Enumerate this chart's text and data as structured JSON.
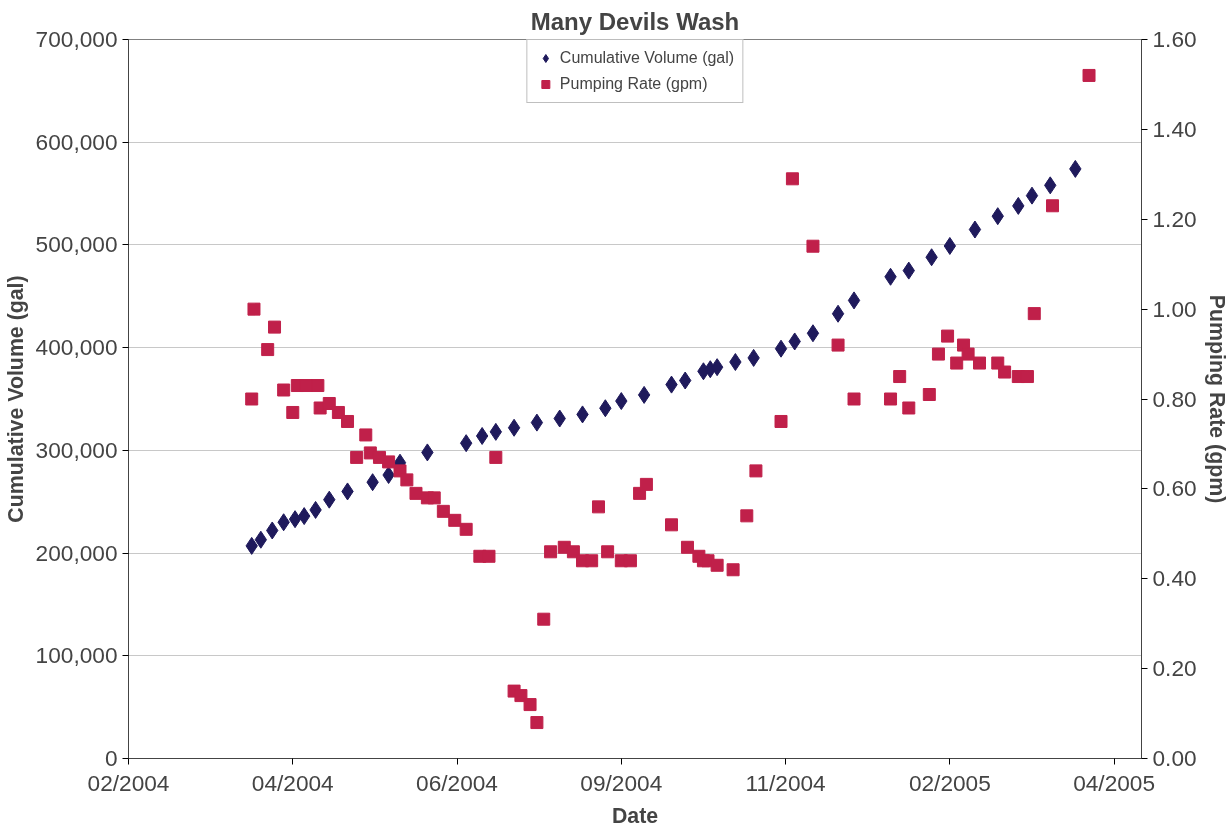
{
  "chart_data": {
    "type": "scatter",
    "title": "Many Devils Wash",
    "xlabel": "Date",
    "ylabel": "Cumulative Volume (gal)",
    "y2label": "Pumping Rate (gpm)",
    "xlim": [
      "2004-02-07",
      "2005-04-26"
    ],
    "xticks": [
      {
        "value": "2004-02-07",
        "label": "02/2004"
      },
      {
        "value": "2004-04-19",
        "label": "04/2004"
      },
      {
        "value": "2004-06-30",
        "label": "06/2004"
      },
      {
        "value": "2004-09-10",
        "label": "09/2004"
      },
      {
        "value": "2004-11-21",
        "label": "11/2004"
      },
      {
        "value": "2005-02-01",
        "label": "02/2005"
      },
      {
        "value": "2005-04-14",
        "label": "04/2005"
      }
    ],
    "ylim": [
      0,
      700000
    ],
    "yticks": [
      {
        "value": 0,
        "label": "0"
      },
      {
        "value": 100000,
        "label": "100,000"
      },
      {
        "value": 200000,
        "label": "200,000"
      },
      {
        "value": 300000,
        "label": "300,000"
      },
      {
        "value": 400000,
        "label": "400,000"
      },
      {
        "value": 500000,
        "label": "500,000"
      },
      {
        "value": 600000,
        "label": "600,000"
      },
      {
        "value": 700000,
        "label": "700,000"
      }
    ],
    "y2lim": [
      0,
      1.6
    ],
    "y2ticks": [
      {
        "value": 0,
        "label": "0.00"
      },
      {
        "value": 0.2,
        "label": "0.20"
      },
      {
        "value": 0.4,
        "label": "0.40"
      },
      {
        "value": 0.6,
        "label": "0.60"
      },
      {
        "value": 0.8,
        "label": "0.80"
      },
      {
        "value": 1.0,
        "label": "1.00"
      },
      {
        "value": 1.2,
        "label": "1.20"
      },
      {
        "value": 1.4,
        "label": "1.40"
      },
      {
        "value": 1.6,
        "label": "1.60"
      }
    ],
    "grid": "y",
    "legend": "top",
    "series": [
      {
        "name": "Cumulative Volume (gal)",
        "color": "#1f1a5c",
        "marker": "diamond",
        "x": [
          "2004-04-01",
          "2004-04-05",
          "2004-04-10",
          "2004-04-15",
          "2004-04-20",
          "2004-04-24",
          "2004-04-29",
          "2004-05-05",
          "2004-05-13",
          "2004-05-24",
          "2004-05-31",
          "2004-06-05",
          "2004-06-17",
          "2004-07-04",
          "2004-07-11",
          "2004-07-17",
          "2004-07-25",
          "2004-08-04",
          "2004-08-14",
          "2004-08-24",
          "2004-09-03",
          "2004-09-10",
          "2004-09-20",
          "2004-10-02",
          "2004-10-08",
          "2004-10-16",
          "2004-10-19",
          "2004-10-22",
          "2004-10-30",
          "2004-11-07",
          "2004-11-19",
          "2004-11-25",
          "2004-12-03",
          "2004-12-14",
          "2004-12-21",
          "2005-01-06",
          "2005-01-14",
          "2005-01-24",
          "2005-02-01",
          "2005-02-12",
          "2005-02-22",
          "2005-03-03",
          "2005-03-09",
          "2005-03-17",
          "2005-03-28"
        ],
        "values": [
          207000,
          213000,
          222000,
          230000,
          233000,
          236000,
          242000,
          252000,
          260000,
          269000,
          276000,
          288000,
          298000,
          307000,
          314000,
          318000,
          322000,
          327000,
          331000,
          335000,
          341000,
          348000,
          354000,
          364000,
          368000,
          377000,
          379000,
          381000,
          386000,
          390000,
          399000,
          406000,
          414000,
          433000,
          446000,
          469000,
          475000,
          488000,
          499000,
          515000,
          528000,
          538000,
          548000,
          558000,
          574000
        ]
      },
      {
        "name": "Pumping Rate (gpm)",
        "color": "#c0204a",
        "marker": "square",
        "axis": "y2",
        "x": [
          "2004-04-01",
          "2004-04-02",
          "2004-04-08",
          "2004-04-11",
          "2004-04-15",
          "2004-04-19",
          "2004-04-21",
          "2004-04-25",
          "2004-04-30",
          "2004-05-01",
          "2004-05-05",
          "2004-05-09",
          "2004-05-13",
          "2004-05-17",
          "2004-05-21",
          "2004-05-23",
          "2004-05-27",
          "2004-05-31",
          "2004-06-05",
          "2004-06-08",
          "2004-06-12",
          "2004-06-17",
          "2004-06-20",
          "2004-06-24",
          "2004-06-29",
          "2004-07-04",
          "2004-07-10",
          "2004-07-14",
          "2004-07-17",
          "2004-07-25",
          "2004-07-28",
          "2004-08-01",
          "2004-08-04",
          "2004-08-07",
          "2004-08-10",
          "2004-08-16",
          "2004-08-20",
          "2004-08-24",
          "2004-08-28",
          "2004-08-31",
          "2004-09-04",
          "2004-09-10",
          "2004-09-14",
          "2004-09-18",
          "2004-09-21",
          "2004-10-02",
          "2004-10-09",
          "2004-10-14",
          "2004-10-16",
          "2004-10-18",
          "2004-10-22",
          "2004-10-29",
          "2004-11-04",
          "2004-11-08",
          "2004-11-19",
          "2004-11-24",
          "2004-12-03",
          "2004-12-14",
          "2004-12-21",
          "2005-01-06",
          "2005-01-10",
          "2005-01-14",
          "2005-01-23",
          "2005-01-27",
          "2005-01-31",
          "2005-02-04",
          "2005-02-07",
          "2005-02-09",
          "2005-02-14",
          "2005-02-22",
          "2005-02-25",
          "2005-03-03",
          "2005-03-07",
          "2005-03-10",
          "2005-03-18",
          "2005-04-03"
        ],
        "values": [
          0.8,
          1.0,
          0.91,
          0.96,
          0.82,
          0.77,
          0.83,
          0.83,
          0.83,
          0.78,
          0.79,
          0.77,
          0.75,
          0.67,
          0.72,
          0.68,
          0.67,
          0.66,
          0.64,
          0.62,
          0.59,
          0.58,
          0.58,
          0.55,
          0.53,
          0.51,
          0.45,
          0.45,
          0.67,
          0.15,
          0.14,
          0.12,
          0.08,
          0.31,
          0.46,
          0.47,
          0.46,
          0.44,
          0.44,
          0.56,
          0.46,
          0.44,
          0.44,
          0.59,
          0.61,
          0.52,
          0.47,
          0.45,
          0.44,
          0.44,
          0.43,
          0.42,
          0.54,
          0.64,
          0.75,
          1.29,
          1.14,
          0.92,
          0.8,
          0.8,
          0.85,
          0.78,
          0.81,
          0.9,
          0.94,
          0.88,
          0.92,
          0.9,
          0.88,
          0.88,
          0.86,
          0.85,
          0.85,
          0.99,
          1.23,
          1.52
        ]
      }
    ]
  }
}
